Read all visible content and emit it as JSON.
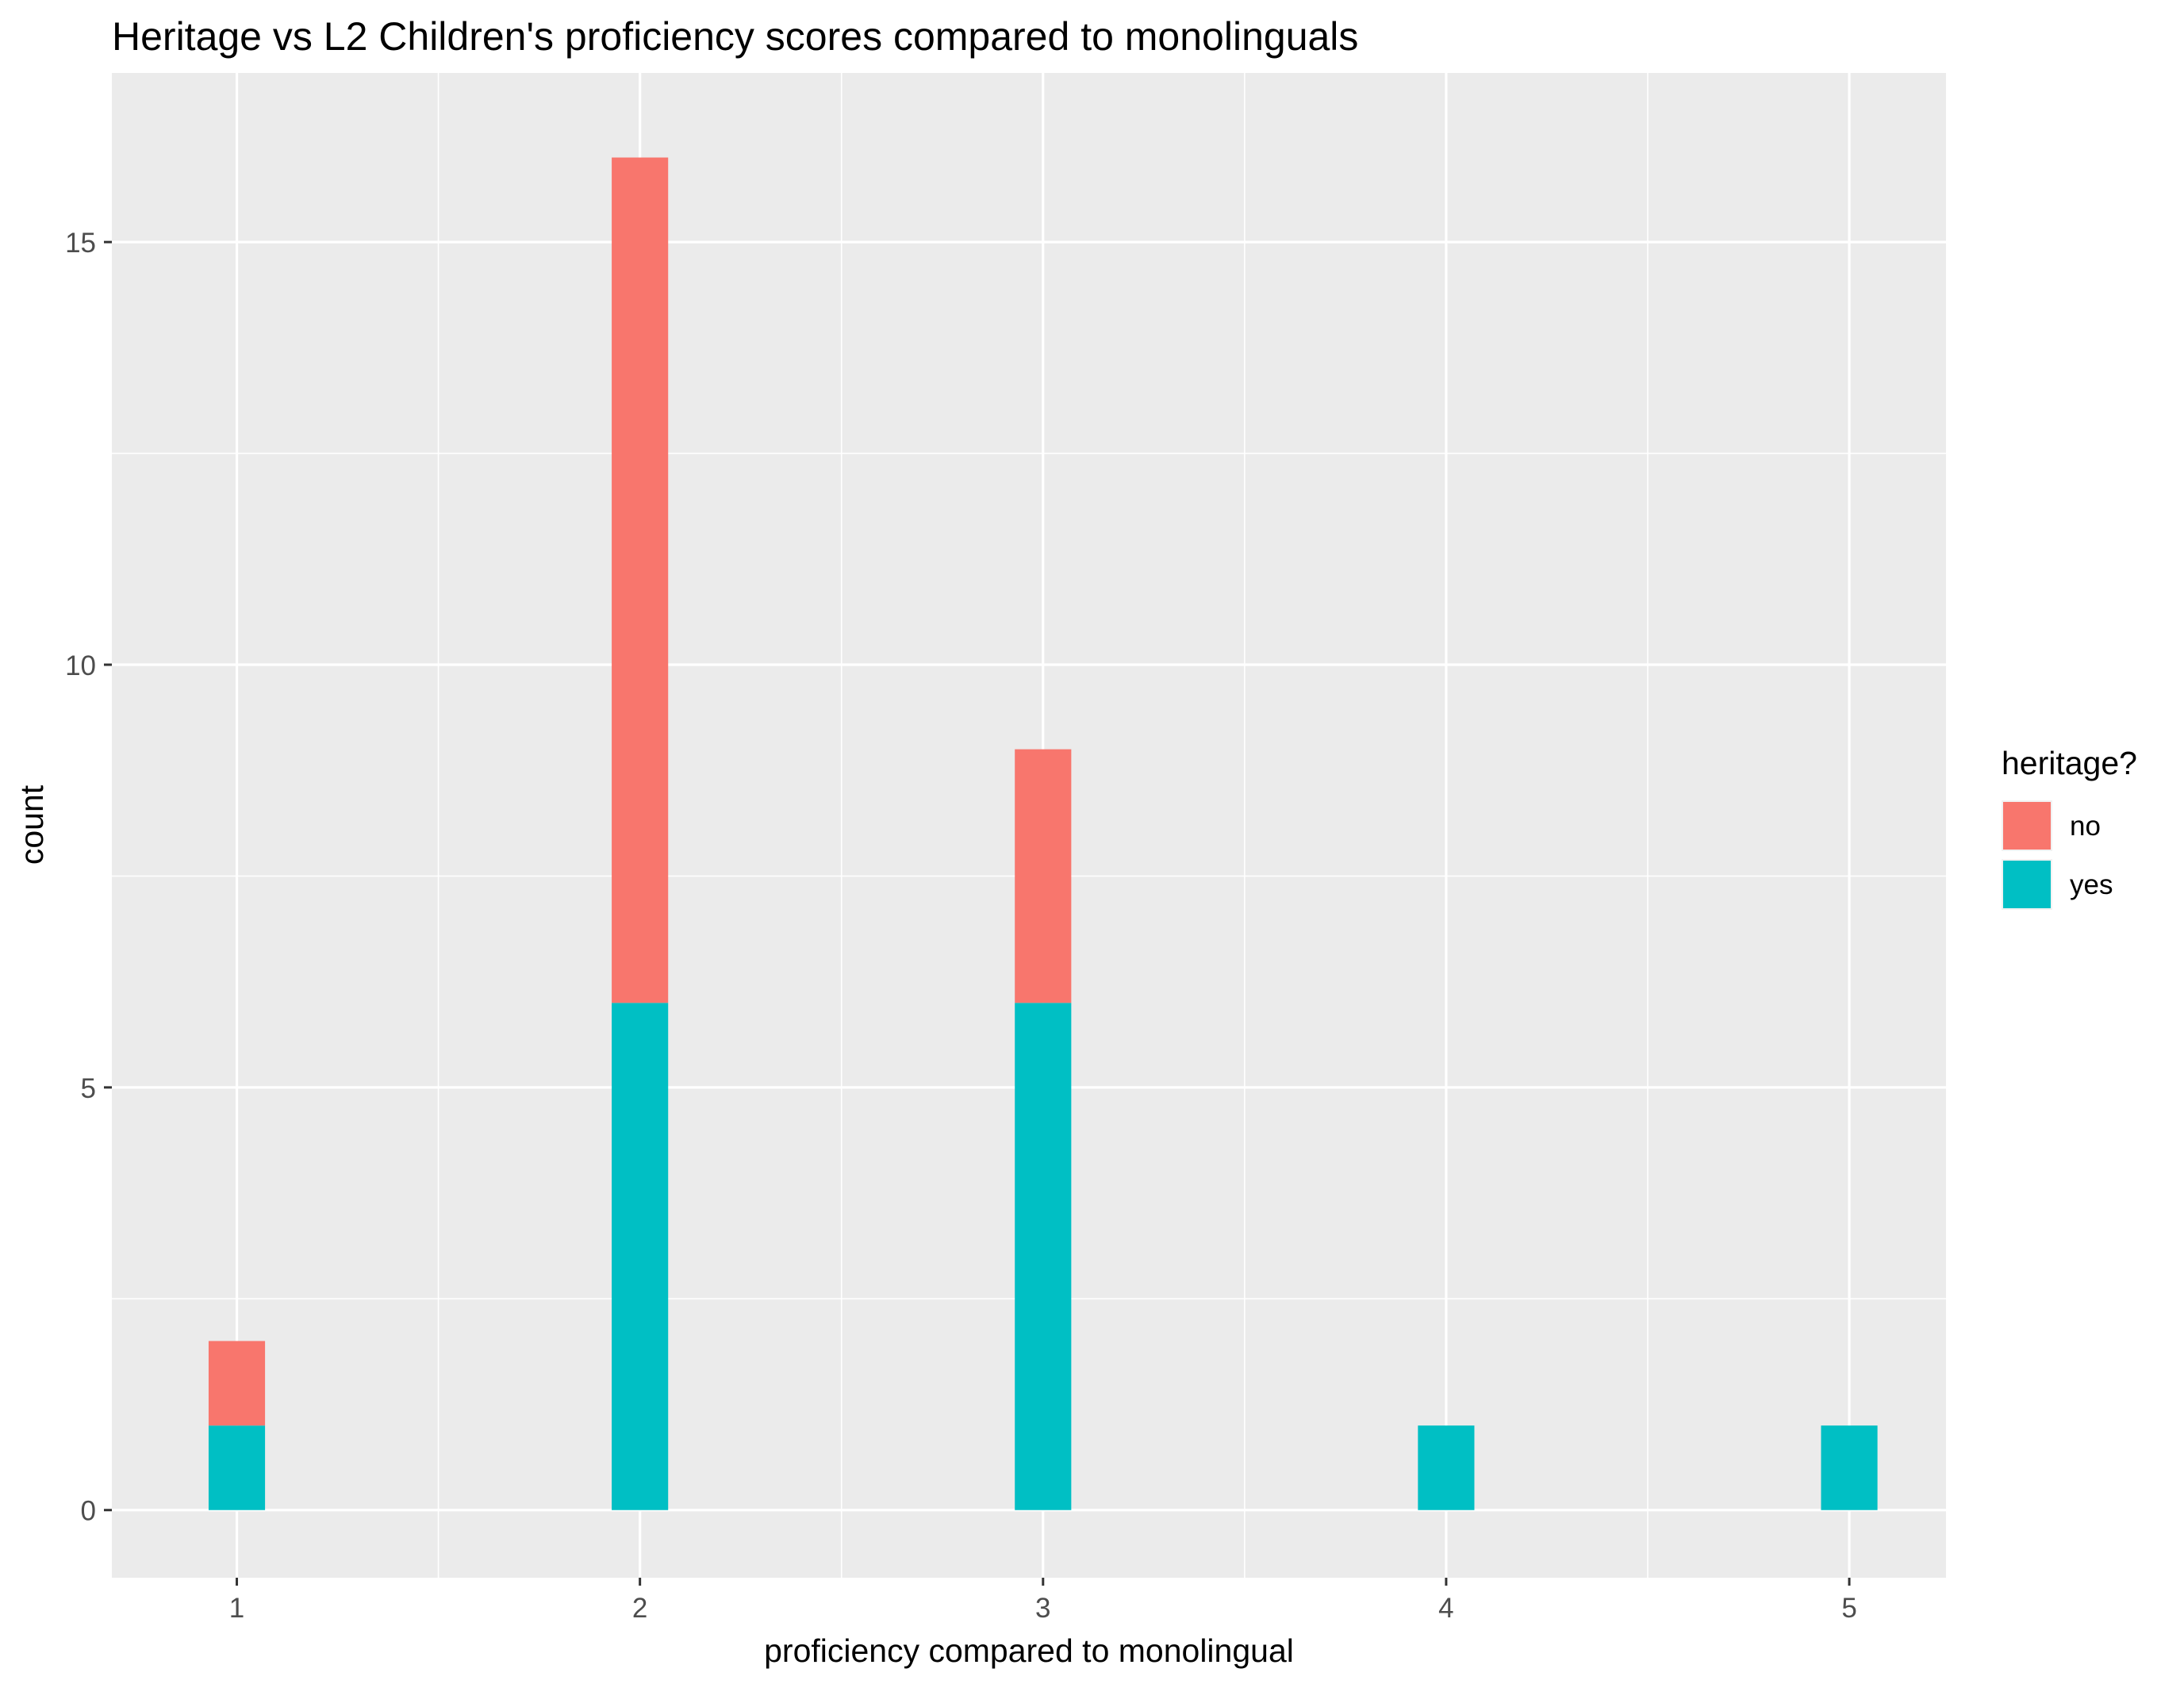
{
  "chart_data": {
    "type": "bar",
    "stacked": true,
    "title": "Heritage vs L2 Children's proficiency scores compared to monolinguals",
    "xlabel": "proficiency compared to monolingual",
    "ylabel": "count",
    "categories": [
      1,
      2,
      3,
      4,
      5
    ],
    "x_ticks": [
      "1",
      "2",
      "3",
      "4",
      "5"
    ],
    "y_ticks": [
      0,
      5,
      10,
      15
    ],
    "y_tick_labels": [
      "0",
      "5",
      "10",
      "15"
    ],
    "xlim": [
      0.69,
      5.24
    ],
    "ylim": [
      -0.8,
      17.0
    ],
    "grid": true,
    "panel_background": "#ebebeb",
    "legend": {
      "title": "heritage?",
      "position": "right"
    },
    "series": [
      {
        "name": "yes",
        "color": "#00bfc4",
        "values": [
          1,
          6,
          6,
          1,
          1
        ]
      },
      {
        "name": "no",
        "color": "#f8766d",
        "values": [
          1,
          10,
          3,
          0,
          0
        ]
      }
    ],
    "stack_order": [
      "yes",
      "no"
    ],
    "legend_order": [
      "no",
      "yes"
    ]
  }
}
